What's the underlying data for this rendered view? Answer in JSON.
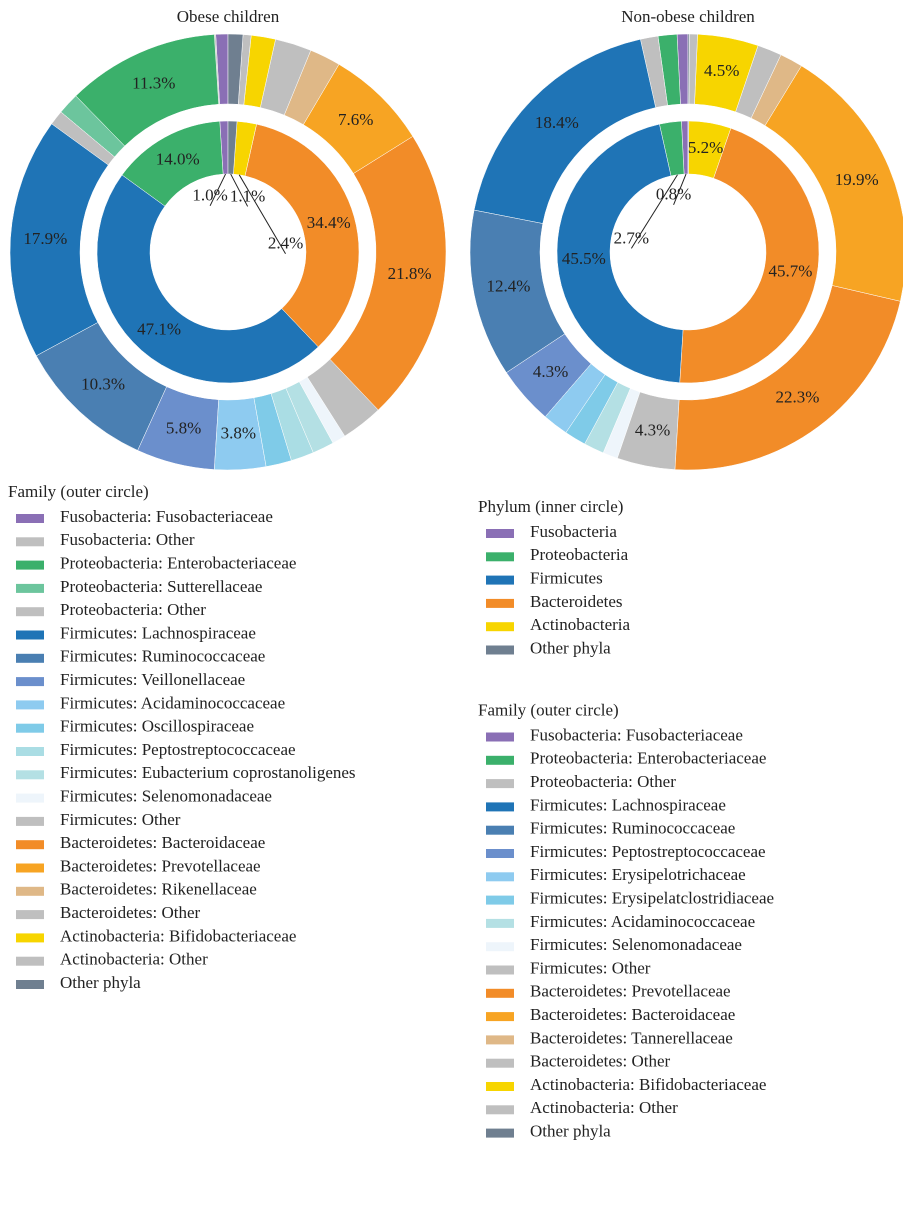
{
  "chart_data": [
    {
      "type": "donut",
      "title": "Obese children",
      "rings": [
        {
          "colors": [
            "#8a6fb5",
            "#3bb06b",
            "#1f74b6",
            "#f28c28",
            "#f7d500",
            "#6f7f90"
          ],
          "values": [
            1.0,
            14.0,
            47.1,
            34.4,
            2.4,
            1.1
          ],
          "value_labels": [
            "1.0%",
            "14.0%",
            "47.1%",
            "34.4%",
            "2.4%",
            "1.1%"
          ]
        },
        {
          "name": "Family (outer circle)",
          "categories": [
            "Fusobacteria: Fusobacteriaceae",
            "Fusobacteria: Other",
            "Proteobacteria: Enterobacteriaceae",
            "Proteobacteria: Sutterellaceae",
            "Proteobacteria: Other",
            "Firmicutes: Lachnospiraceae",
            "Firmicutes: Ruminococcaceae",
            "Firmicutes: Veillonellaceae",
            "Firmicutes: Acidaminococcaceae",
            "Firmicutes: Oscillospiraceae",
            "Firmicutes: Peptostreptococcaceae",
            "Firmicutes: Eubacterium coprostanoligenes",
            "Firmicutes: Selenomonadaceae",
            "Firmicutes: Other",
            "Bacteroidetes: Bacteroidaceae",
            "Bacteroidetes: Prevotellaceae",
            "Bacteroidetes: Rikenellaceae",
            "Bacteroidetes: Other",
            "Actinobacteria: Bifidobacteriaceae",
            "Actinobacteria: Other",
            "Other phyla"
          ],
          "colors": [
            "#8a6fb5",
            "#bfbfbf",
            "#3bb06b",
            "#6cc59d",
            "#bfbfbf",
            "#1f74b6",
            "#4a7fb2",
            "#6b8fcc",
            "#8ecbf0",
            "#7fcbe8",
            "#aadde4",
            "#b4e0e4",
            "#eef5fb",
            "#bfbfbf",
            "#f28c28",
            "#f7a423",
            "#dfb887",
            "#bfbfbf",
            "#f7d500",
            "#bfbfbf",
            "#6f7f90"
          ],
          "values": [
            0.9,
            0.1,
            11.3,
            1.6,
            1.1,
            17.9,
            10.3,
            5.8,
            3.8,
            1.9,
            1.7,
            1.6,
            1.0,
            3.1,
            21.8,
            7.6,
            2.3,
            2.7,
            1.8,
            0.6,
            1.1
          ],
          "value_labels": [
            null,
            null,
            "11.3%",
            null,
            null,
            "17.9%",
            "10.3%",
            "5.8%",
            "3.8%",
            null,
            null,
            null,
            null,
            null,
            "21.8%",
            "7.6%",
            null,
            null,
            null,
            null,
            null
          ]
        }
      ]
    },
    {
      "type": "donut",
      "title": "Non-obese children",
      "rings": [
        {
          "name": "Phylum (inner circle)",
          "categories": [
            "Fusobacteria",
            "Proteobacteria",
            "Firmicutes",
            "Bacteroidetes",
            "Actinobacteria",
            "Other phyla"
          ],
          "colors": [
            "#8a6fb5",
            "#3bb06b",
            "#1f74b6",
            "#f28c28",
            "#f7d500",
            "#6f7f90"
          ],
          "values": [
            0.8,
            2.7,
            45.5,
            45.7,
            5.2,
            0.1
          ],
          "value_labels": [
            "0.8%",
            "2.7%",
            "45.5%",
            "45.7%",
            "5.2%",
            null
          ]
        },
        {
          "name": "Family (outer circle)",
          "categories": [
            "Fusobacteria: Fusobacteriaceae",
            "Proteobacteria: Enterobacteriaceae",
            "Proteobacteria: Other",
            "Firmicutes: Lachnospiraceae",
            "Firmicutes: Ruminococcaceae",
            "Firmicutes: Peptostreptococcaceae",
            "Firmicutes: Erysipelotrichaceae",
            "Firmicutes: Erysipelatclostridiaceae",
            "Firmicutes: Acidaminococcaceae",
            "Firmicutes: Selenomonadaceae",
            "Firmicutes: Other",
            "Bacteroidetes: Prevotellaceae",
            "Bacteroidetes: Bacteroidaceae",
            "Bacteroidetes: Tannerellaceae",
            "Bacteroidetes: Other",
            "Actinobacteria: Bifidobacteriaceae",
            "Actinobacteria: Other",
            "Other phyla"
          ],
          "colors": [
            "#8a6fb5",
            "#3bb06b",
            "#bfbfbf",
            "#1f74b6",
            "#4a7fb2",
            "#6b8fcc",
            "#8ecbf0",
            "#7fcbe8",
            "#b4e0e4",
            "#eef5fb",
            "#bfbfbf",
            "#f28c28",
            "#f7a423",
            "#dfb887",
            "#bfbfbf",
            "#f7d500",
            "#bfbfbf",
            "#6f7f90"
          ],
          "values": [
            0.8,
            1.4,
            1.3,
            18.4,
            12.4,
            4.3,
            1.9,
            1.6,
            1.5,
            1.1,
            4.3,
            22.3,
            19.9,
            1.7,
            1.8,
            4.5,
            0.6,
            0.1
          ],
          "value_labels": [
            null,
            null,
            null,
            "18.4%",
            "12.4%",
            "4.3%",
            null,
            null,
            null,
            null,
            "4.3%",
            "22.3%",
            "19.9%",
            null,
            null,
            "4.5%",
            null,
            null
          ]
        }
      ]
    }
  ]
}
